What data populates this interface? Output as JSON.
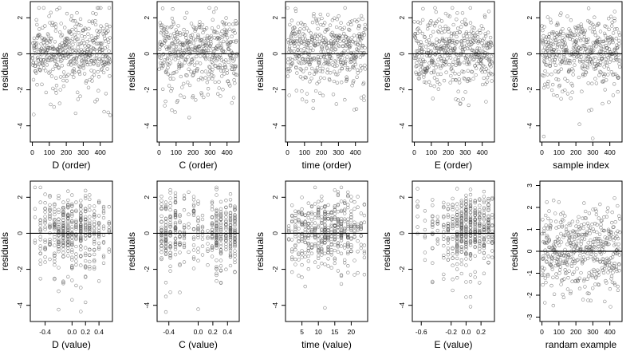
{
  "chart_data": [
    {
      "type": "scatter",
      "ylabel": "residuals",
      "xlabel": "D (order)",
      "xlim": [
        -12,
        472
      ],
      "ylim": [
        -4.9,
        2.9
      ],
      "xticks": [
        0,
        100,
        200,
        300,
        400
      ],
      "xtick_labels": [
        "0",
        "100",
        "200",
        "300",
        "400"
      ],
      "yticks": [
        -4,
        -2,
        0,
        2
      ],
      "ytick_labels": [
        "-4",
        "-2",
        "0",
        "2"
      ],
      "hline": 0,
      "points": {
        "gen": "order",
        "n": 460,
        "max": 460,
        "seed": 11
      }
    },
    {
      "type": "scatter",
      "ylabel": "residuals",
      "xlabel": "C (order)",
      "xlim": [
        -12,
        472
      ],
      "ylim": [
        -4.9,
        2.9
      ],
      "xticks": [
        0,
        100,
        200,
        300,
        400
      ],
      "xtick_labels": [
        "0",
        "100",
        "200",
        "300",
        "400"
      ],
      "yticks": [
        -4,
        -2,
        0,
        2
      ],
      "ytick_labels": [
        "-4",
        "-2",
        "0",
        "2"
      ],
      "hline": 0,
      "points": {
        "gen": "order",
        "n": 460,
        "max": 460,
        "seed": 23
      }
    },
    {
      "type": "scatter",
      "ylabel": "residuals",
      "xlabel": "time (order)",
      "xlim": [
        -12,
        472
      ],
      "ylim": [
        -4.9,
        2.9
      ],
      "xticks": [
        0,
        100,
        200,
        300,
        400
      ],
      "xtick_labels": [
        "0",
        "100",
        "200",
        "300",
        "400"
      ],
      "yticks": [
        -4,
        -2,
        0,
        2
      ],
      "ytick_labels": [
        "-4",
        "-2",
        "0",
        "2"
      ],
      "hline": 0,
      "points": {
        "gen": "order",
        "n": 460,
        "max": 460,
        "seed": 37
      }
    },
    {
      "type": "scatter",
      "ylabel": "residuals",
      "xlabel": "E (order)",
      "xlim": [
        -12,
        472
      ],
      "ylim": [
        -4.9,
        2.9
      ],
      "xticks": [
        0,
        100,
        200,
        300,
        400
      ],
      "xtick_labels": [
        "0",
        "100",
        "200",
        "300",
        "400"
      ],
      "yticks": [
        -4,
        -2,
        0,
        2
      ],
      "ytick_labels": [
        "-4",
        "-2",
        "0",
        "2"
      ],
      "hline": 0,
      "points": {
        "gen": "order",
        "n": 460,
        "max": 460,
        "seed": 41
      }
    },
    {
      "type": "scatter",
      "ylabel": "residuals",
      "xlabel": "sample index",
      "xlim": [
        -12,
        472
      ],
      "ylim": [
        -4.9,
        2.9
      ],
      "xticks": [
        0,
        100,
        200,
        300,
        400
      ],
      "xtick_labels": [
        "0",
        "100",
        "200",
        "300",
        "400"
      ],
      "yticks": [
        -4,
        -2,
        0,
        2
      ],
      "ytick_labels": [
        "-4",
        "-2",
        "0",
        "2"
      ],
      "hline": 0,
      "points": {
        "gen": "order",
        "n": 460,
        "max": 460,
        "seed": 53
      }
    },
    {
      "type": "scatter",
      "ylabel": "residuals",
      "xlabel": "D (value)",
      "xlim": [
        -0.62,
        0.6
      ],
      "ylim": [
        -4.9,
        2.9
      ],
      "xticks": [
        -0.4,
        0.0,
        0.2,
        0.4
      ],
      "xtick_labels": [
        "-0.4",
        "0.0",
        "0.2",
        "0.4"
      ],
      "yticks": [
        -4,
        -2,
        0,
        2
      ],
      "ytick_labels": [
        "-4",
        "-2",
        "0",
        "2"
      ],
      "hline": 0,
      "points": {
        "gen": "discrete",
        "n": 460,
        "seed": 61,
        "levels": [
          -0.55,
          -0.47,
          -0.4,
          -0.33,
          -0.26,
          -0.2,
          -0.13,
          -0.06,
          0.0,
          0.06,
          0.13,
          0.2,
          0.26,
          0.33,
          0.4,
          0.47,
          0.55
        ],
        "weights": [
          1,
          2,
          3,
          3,
          3,
          4,
          5,
          5,
          5,
          5,
          5,
          4,
          3,
          3,
          2,
          2,
          1
        ]
      }
    },
    {
      "type": "scatter",
      "ylabel": "residuals",
      "xlabel": "C (value)",
      "xlim": [
        -0.56,
        0.56
      ],
      "ylim": [
        -4.9,
        2.9
      ],
      "xticks": [
        -0.4,
        0.0,
        0.2,
        0.4
      ],
      "xtick_labels": [
        "-0.4",
        "0.0",
        "0.2",
        "0.4"
      ],
      "yticks": [
        -4,
        -2,
        0,
        2
      ],
      "ytick_labels": [
        "-4",
        "-2",
        "0",
        "2"
      ],
      "hline": 0,
      "points": {
        "gen": "discrete",
        "n": 460,
        "seed": 71,
        "levels": [
          -0.5,
          -0.44,
          -0.38,
          -0.31,
          -0.25,
          -0.19,
          -0.13,
          -0.06,
          0.0,
          0.06,
          0.13,
          0.19,
          0.25,
          0.31,
          0.38,
          0.44,
          0.5
        ],
        "weights": [
          3,
          3,
          3,
          4,
          2,
          3,
          1,
          2,
          2,
          1,
          1,
          3,
          5,
          4,
          3,
          4,
          4
        ]
      }
    },
    {
      "type": "scatter",
      "ylabel": "residuals",
      "xlabel": "time (value)",
      "xlim": [
        0,
        25
      ],
      "ylim": [
        -4.9,
        2.9
      ],
      "xticks": [
        5,
        10,
        15,
        20
      ],
      "xtick_labels": [
        "5",
        "10",
        "15",
        "20"
      ],
      "yticks": [
        -4,
        -2,
        0,
        2
      ],
      "ytick_labels": [
        "-4",
        "-2",
        "0",
        "2"
      ],
      "hline": 0,
      "points": {
        "gen": "discrete",
        "n": 460,
        "seed": 83,
        "levels": [
          1,
          2,
          3,
          4,
          5,
          6,
          7,
          8,
          9,
          10,
          11,
          12,
          13,
          14,
          15,
          16,
          17,
          18,
          19,
          20,
          21,
          22,
          23,
          24
        ],
        "weights": [
          1,
          2,
          3,
          3,
          3,
          4,
          4,
          5,
          5,
          5,
          5,
          6,
          6,
          5,
          5,
          5,
          5,
          4,
          4,
          4,
          3,
          3,
          3,
          2
        ]
      }
    },
    {
      "type": "scatter",
      "ylabel": "residuals",
      "xlabel": "E (value)",
      "xlim": [
        -0.72,
        0.38
      ],
      "ylim": [
        -4.9,
        2.9
      ],
      "xticks": [
        -0.6,
        -0.2,
        0.0,
        0.2
      ],
      "xtick_labels": [
        "-0.6",
        "-0.2",
        "0.0",
        "0.2"
      ],
      "yticks": [
        -4,
        -2,
        0,
        2
      ],
      "ytick_labels": [
        "-4",
        "-2",
        "0",
        "2"
      ],
      "hline": 0,
      "points": {
        "gen": "discrete",
        "n": 460,
        "seed": 97,
        "levels": [
          -0.65,
          -0.55,
          -0.45,
          -0.38,
          -0.3,
          -0.24,
          -0.18,
          -0.12,
          -0.06,
          0.0,
          0.06,
          0.12,
          0.18,
          0.24,
          0.3,
          0.35
        ],
        "weights": [
          1,
          1,
          2,
          2,
          2,
          3,
          4,
          5,
          6,
          6,
          6,
          5,
          4,
          3,
          3,
          2
        ]
      }
    },
    {
      "type": "scatter",
      "ylabel": "residuals",
      "xlabel": "randam example",
      "xlim": [
        -12,
        472
      ],
      "ylim": [
        -3.2,
        3.2
      ],
      "xticks": [
        0,
        100,
        200,
        300,
        400
      ],
      "xtick_labels": [
        "0",
        "100",
        "200",
        "300",
        "400"
      ],
      "yticks": [
        -3,
        -2,
        -1,
        0,
        1,
        2,
        3
      ],
      "ytick_labels": [
        "-3",
        "-2",
        "-1",
        "0",
        "1",
        "2",
        "3"
      ],
      "hline": 0,
      "points": {
        "gen": "order",
        "n": 460,
        "max": 460,
        "seed": 131,
        "dist": "random"
      }
    }
  ]
}
